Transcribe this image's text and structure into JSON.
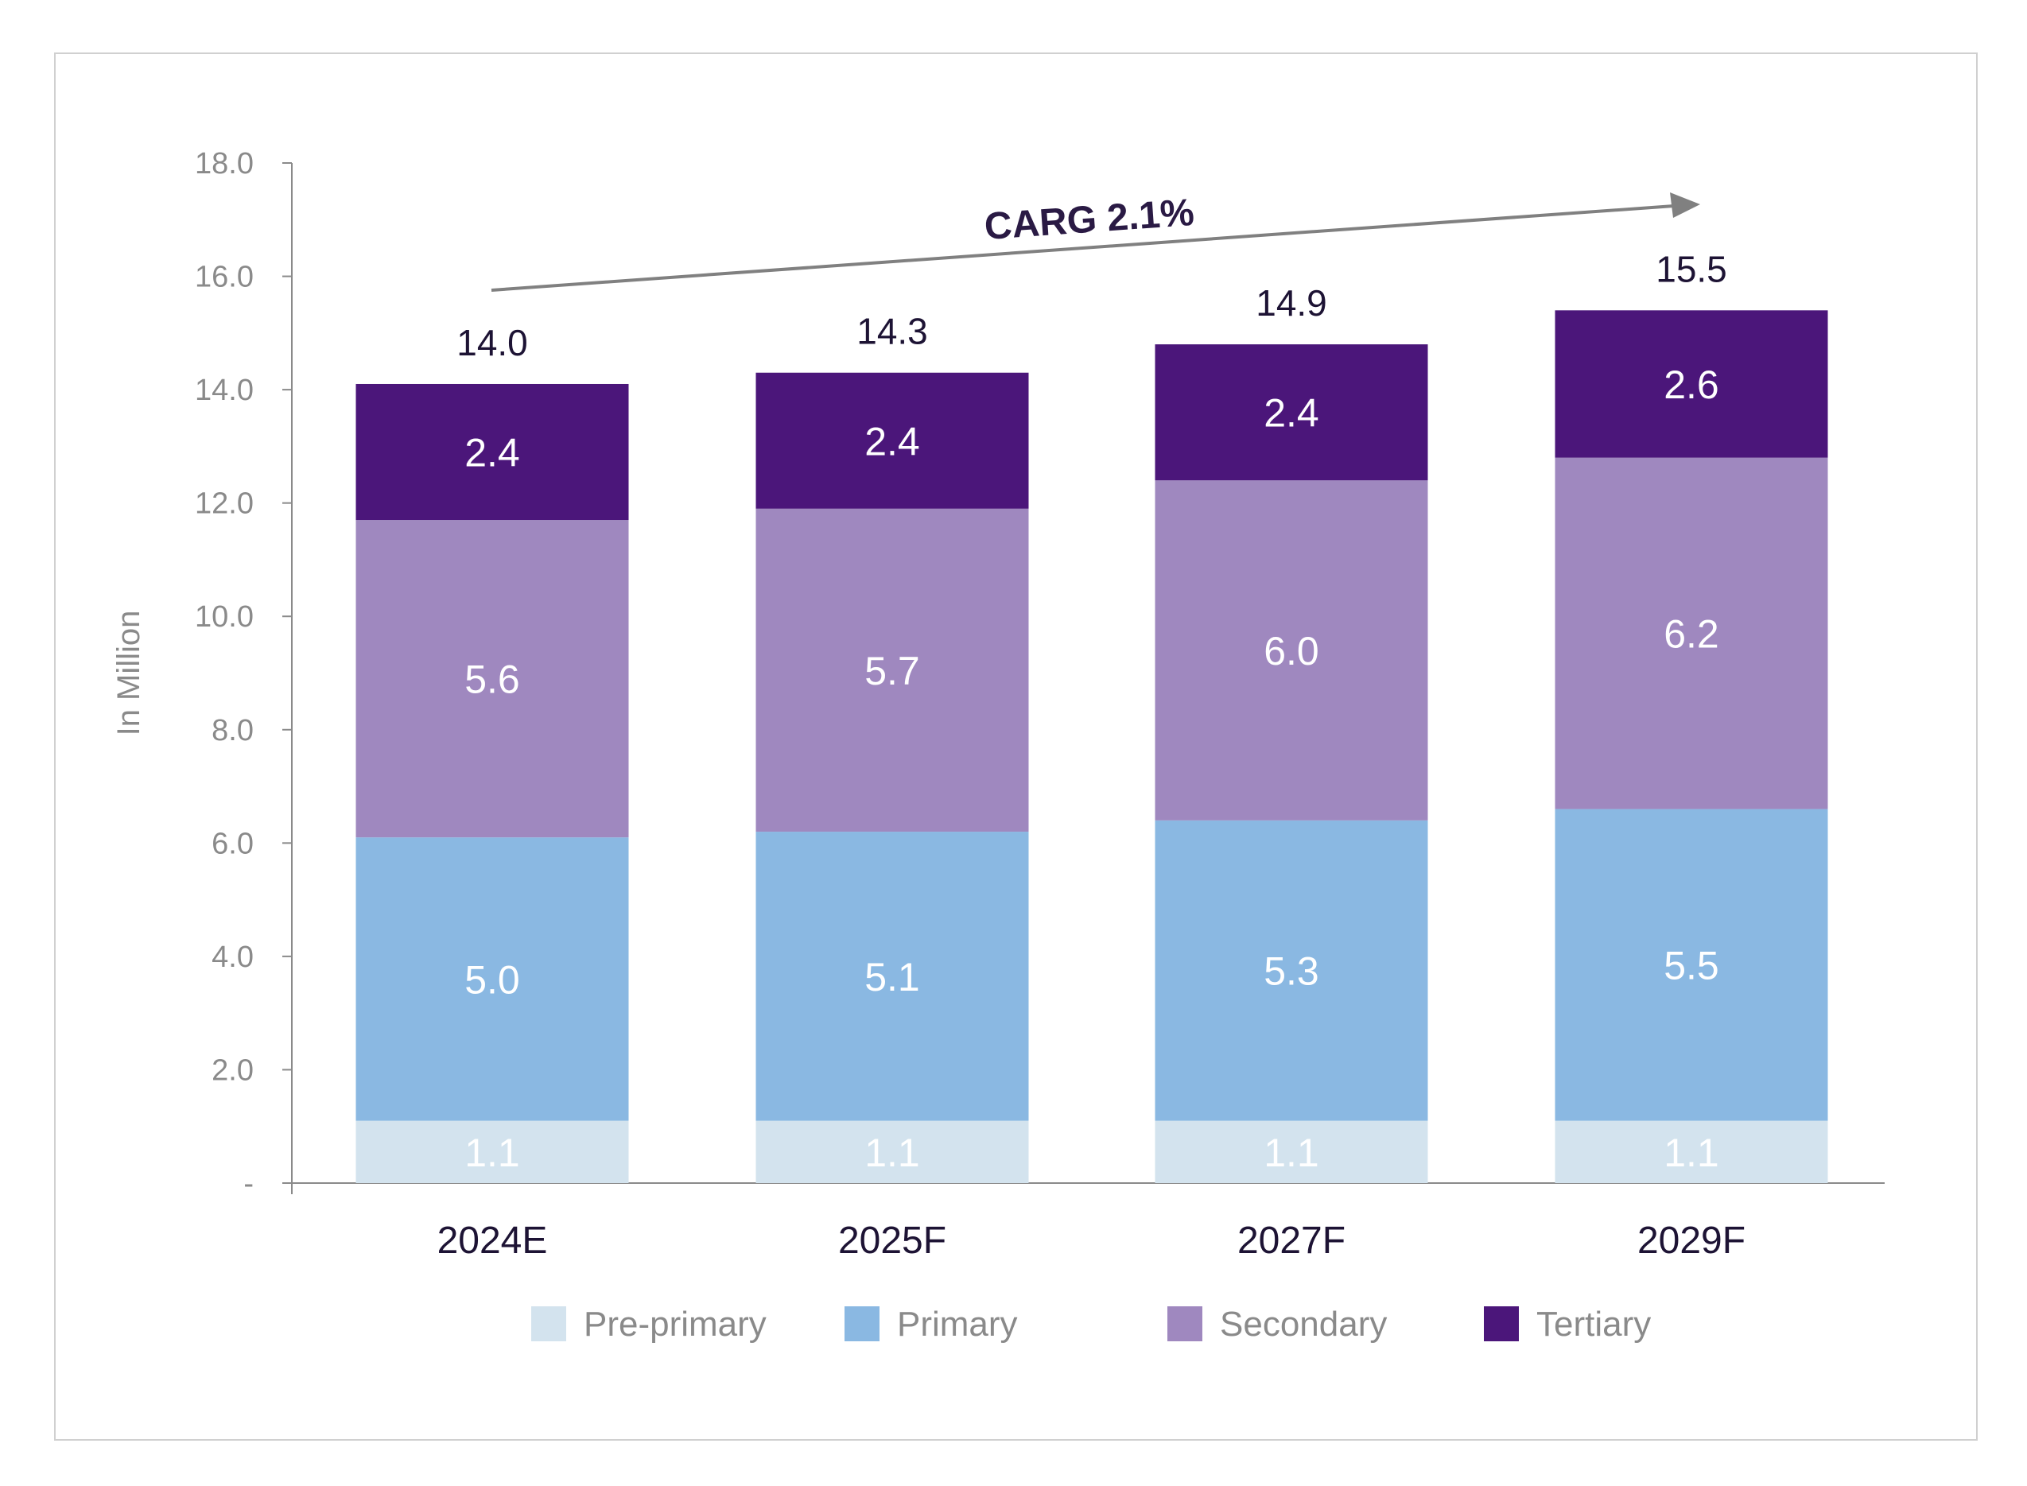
{
  "chart_data": {
    "type": "bar",
    "stacked": true,
    "categories": [
      "2024E",
      "2025F",
      "2027F",
      "2029F"
    ],
    "series": [
      {
        "name": "Pre-primary",
        "color": "#d3e3ee",
        "values": [
          1.1,
          1.1,
          1.1,
          1.1
        ]
      },
      {
        "name": "Primary",
        "color": "#8ab8e2",
        "values": [
          5.0,
          5.1,
          5.3,
          5.5
        ]
      },
      {
        "name": "Secondary",
        "color": "#9f88bf",
        "values": [
          5.6,
          5.7,
          6.0,
          6.2
        ]
      },
      {
        "name": "Tertiary",
        "color": "#4b167a",
        "values": [
          2.4,
          2.4,
          2.4,
          2.6
        ]
      }
    ],
    "totals": [
      14.0,
      14.3,
      14.9,
      15.5
    ],
    "ylabel": "In Million",
    "ylim": [
      0,
      18
    ],
    "yticks": [
      "-",
      "2.0",
      "4.0",
      "6.0",
      "8.0",
      "10.0",
      "12.0",
      "14.0",
      "16.0",
      "18.0"
    ],
    "annotation": "CARG 2.1%",
    "legend_position": "bottom",
    "grid": false
  }
}
